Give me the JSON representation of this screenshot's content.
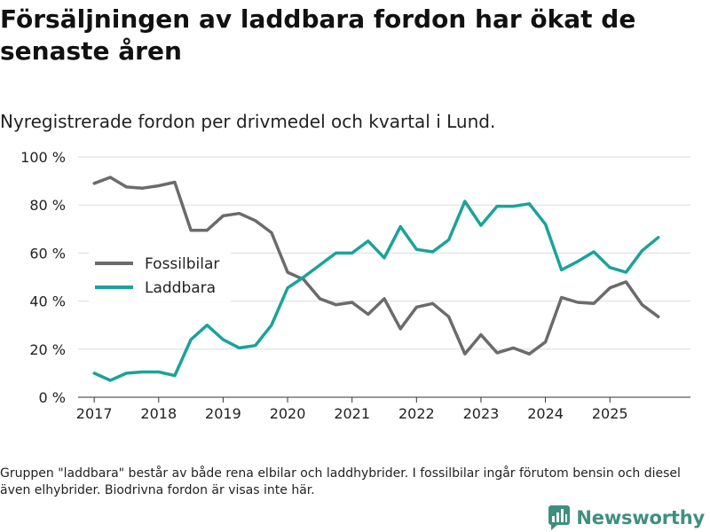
{
  "chart_data": {
    "type": "line",
    "title": "Försäljningen av laddbara fordon har ökat de senaste åren",
    "subtitle": "Nyregistrerade fordon per drivmedel och kvartal i Lund.",
    "x": [
      2017.0,
      2017.25,
      2017.5,
      2017.75,
      2018.0,
      2018.25,
      2018.5,
      2018.75,
      2019.0,
      2019.25,
      2019.5,
      2019.75,
      2020.0,
      2020.25,
      2020.5,
      2020.75,
      2021.0,
      2021.25,
      2021.5,
      2021.75,
      2022.0,
      2022.25,
      2022.5,
      2022.75,
      2023.0,
      2023.25,
      2023.5,
      2023.75,
      2024.0,
      2024.25,
      2024.5,
      2024.75,
      2025.0,
      2025.25,
      2025.5,
      2025.75
    ],
    "series": [
      {
        "name": "Fossilbilar",
        "color": "#6b6b6b",
        "values": [
          89,
          91.5,
          87.5,
          87,
          88,
          89.5,
          69.5,
          69.5,
          75.5,
          76.5,
          73.5,
          68.5,
          52,
          49,
          41,
          38.5,
          39.5,
          34.5,
          41,
          28.5,
          37.5,
          39,
          33.5,
          18,
          26,
          18.5,
          20.5,
          18,
          23,
          41.5,
          39.5,
          39,
          45.5,
          48,
          38.5,
          33.5
        ]
      },
      {
        "name": "Laddbara",
        "color": "#1aa39a",
        "values": [
          10,
          7,
          10,
          10.5,
          10.5,
          9,
          24,
          30,
          24,
          20.5,
          21.5,
          30,
          45.5,
          50,
          55,
          60,
          60,
          65,
          58,
          71,
          61.5,
          60.5,
          65.5,
          81.5,
          71.5,
          79.5,
          79.5,
          80.5,
          72,
          53,
          56.5,
          60.5,
          54,
          52,
          61,
          66.5
        ]
      }
    ],
    "ylim": [
      0,
      100
    ],
    "yticks": [
      0,
      20,
      40,
      60,
      80,
      100
    ],
    "ytick_labels": [
      "0 %",
      "20 %",
      "40 %",
      "60 %",
      "80 %",
      "100 %"
    ],
    "xlim": [
      2016.75,
      2026.25
    ],
    "xticks": [
      2017,
      2018,
      2019,
      2020,
      2021,
      2022,
      2023,
      2024,
      2025
    ],
    "xtick_labels": [
      "2017",
      "2018",
      "2019",
      "2020",
      "2021",
      "2022",
      "2023",
      "2024",
      "2025"
    ],
    "legend_position": "left-center",
    "grid": true,
    "xlabel": "",
    "ylabel": ""
  },
  "footnote": "Gruppen \"laddbara\" består av både rena elbilar och laddhybrider. I fossilbilar ingår förutom bensin och diesel även elhybrider. Biodrivna fordon är visas inte här.",
  "brand": {
    "name": "Newsworthy",
    "color": "#3f8f7f",
    "icon": "newsworthy-logo-icon"
  }
}
